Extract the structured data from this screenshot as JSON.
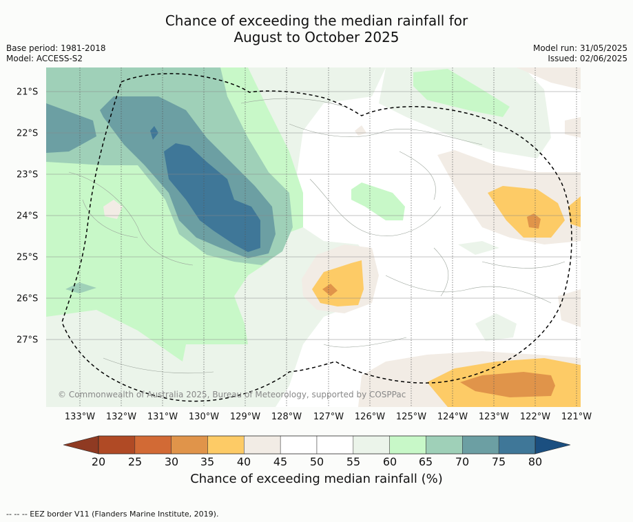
{
  "title_line1": "Chance of exceeding the median rainfall for",
  "title_line2": "August to October 2025",
  "base_period": "Base period: 1981-2018",
  "model": "Model: ACCESS-S2",
  "model_run": "Model run: 31/05/2025",
  "issued": "Issued: 02/06/2025",
  "copyright": "© Commonwealth of Australia 2025, Bureau of Meteorology, supported by COSPPac",
  "lon_labels": [
    "133°W",
    "132°W",
    "131°W",
    "130°W",
    "129°W",
    "128°W",
    "127°W",
    "126°W",
    "125°W",
    "124°W",
    "123°W",
    "122°W",
    "121°W"
  ],
  "lat_labels": [
    "21°S",
    "22°S",
    "23°S",
    "24°S",
    "25°S",
    "26°S",
    "27°S"
  ],
  "colorbar": {
    "ticks": [
      "20",
      "25",
      "30",
      "35",
      "40",
      "45",
      "50",
      "55",
      "60",
      "65",
      "70",
      "75",
      "80"
    ],
    "colors": [
      "#b04a25",
      "#d26a35",
      "#e0944a",
      "#fdcb66",
      "#f2ece5",
      "#ffffff",
      "#ffffff",
      "#ebf4ea",
      "#c8f8c8",
      "#9fd0b8",
      "#6c9fa3",
      "#3f7798"
    ],
    "low_color": "#8f3a22",
    "high_color": "#1b4f80",
    "label": "Chance of exceeding median rainfall (%)"
  },
  "footer": "--  --  -- EEZ border V11 (Flanders Marine Institute, 2019)."
}
